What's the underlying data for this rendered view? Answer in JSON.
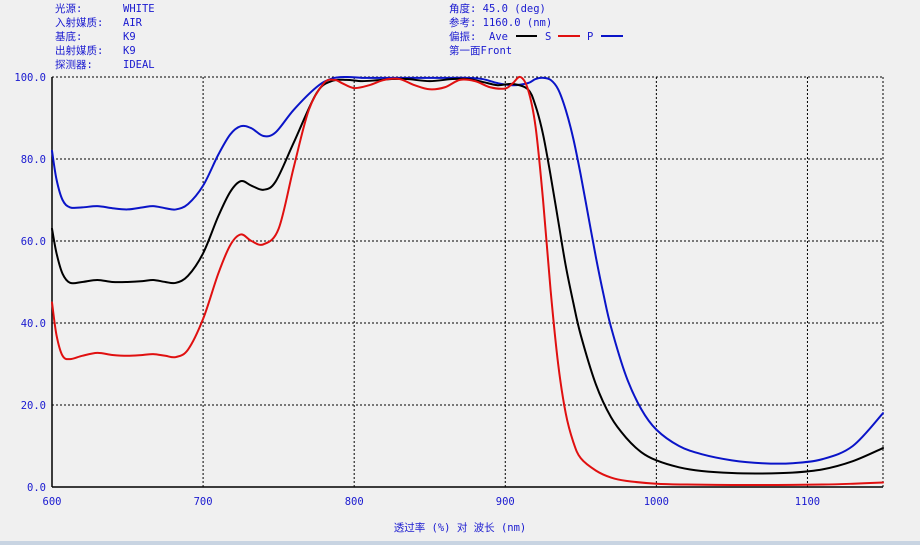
{
  "info": {
    "left": [
      {
        "label": "光源:",
        "value": "WHITE"
      },
      {
        "label": "入射媒质:",
        "value": "AIR"
      },
      {
        "label": "基底:",
        "value": "K9"
      },
      {
        "label": "出射媒质:",
        "value": "K9"
      },
      {
        "label": "探测器:",
        "value": "IDEAL"
      }
    ],
    "right": {
      "angle": "角度: 45.0 (deg)",
      "reference": "参考: 1160.0 (nm)",
      "polarization_label": "偏振:",
      "legend_ave": "Ave",
      "legend_s": "S",
      "legend_p": "P",
      "surface": "第一面Front"
    }
  },
  "colors": {
    "background": "#f0f0f0",
    "text": "#1a1ad0",
    "ave": "#000000",
    "s": "#e01010",
    "p": "#0a14c8",
    "grid": "#000000"
  },
  "chart_data": {
    "type": "line",
    "xlabel": "透过率 (%) 对 波长 (nm)",
    "ylabel": "",
    "xlim": [
      600,
      1150
    ],
    "ylim": [
      0,
      100
    ],
    "x_ticks": [
      "600",
      "700",
      "800",
      "900",
      "1000",
      "1100"
    ],
    "y_ticks": [
      "0.0",
      "20.0",
      "40.0",
      "60.0",
      "80.0",
      "100.0"
    ],
    "grid": true,
    "legend_position": "top",
    "series": [
      {
        "name": "Ave",
        "color": "#000000",
        "x": [
          600,
          603,
          607,
          612,
          620,
          630,
          640,
          650,
          660,
          667,
          675,
          682,
          690,
          700,
          710,
          718,
          725,
          732,
          740,
          748,
          760,
          775,
          785,
          795,
          805,
          815,
          825,
          835,
          850,
          865,
          875,
          885,
          895,
          905,
          915,
          920,
          925,
          930,
          935,
          940,
          945,
          950,
          960,
          970,
          980,
          990,
          1000,
          1015,
          1030,
          1050,
          1070,
          1090,
          1110,
          1130,
          1150
        ],
        "y": [
          63,
          57,
          52,
          49.8,
          50,
          50.5,
          50,
          50,
          50.2,
          50.5,
          50,
          49.8,
          51.5,
          57,
          66,
          72,
          74.6,
          73.5,
          72.5,
          74.5,
          84,
          96,
          99,
          99.3,
          99,
          99.2,
          99.5,
          99.5,
          99,
          99.5,
          99.5,
          98.8,
          98,
          98.3,
          97,
          93,
          86,
          76,
          65,
          54,
          45,
          37,
          25,
          17,
          12,
          8.5,
          6.5,
          4.8,
          3.9,
          3.4,
          3.3,
          3.5,
          4.3,
          6.3,
          9.5
        ]
      },
      {
        "name": "S",
        "color": "#e01010",
        "x": [
          600,
          603,
          607,
          612,
          620,
          630,
          640,
          650,
          660,
          667,
          675,
          682,
          690,
          700,
          710,
          718,
          725,
          732,
          740,
          750,
          760,
          770,
          780,
          787,
          792,
          800,
          810,
          820,
          830,
          840,
          850,
          860,
          870,
          880,
          890,
          900,
          905,
          910,
          915,
          920,
          925,
          930,
          935,
          940,
          945,
          950,
          960,
          970,
          980,
          1000,
          1020,
          1050,
          1080,
          1110,
          1130,
          1150
        ],
        "y": [
          45,
          37,
          32,
          31.2,
          32,
          32.7,
          32.2,
          32,
          32.2,
          32.4,
          32,
          31.7,
          33.5,
          41,
          52,
          59,
          61.6,
          60,
          59.2,
          63,
          78,
          92,
          98.5,
          99.3,
          98.5,
          97.3,
          98,
          99.3,
          99.5,
          98,
          97,
          97.5,
          99.3,
          99,
          97.5,
          97.2,
          98.5,
          100,
          97,
          88,
          70,
          48,
          30,
          18,
          11,
          7,
          4,
          2.3,
          1.5,
          0.8,
          0.6,
          0.5,
          0.5,
          0.6,
          0.8,
          1.1
        ]
      },
      {
        "name": "P",
        "color": "#0a14c8",
        "x": [
          600,
          603,
          607,
          612,
          620,
          630,
          640,
          650,
          660,
          667,
          675,
          682,
          690,
          700,
          710,
          718,
          725,
          732,
          740,
          748,
          760,
          775,
          785,
          795,
          805,
          815,
          825,
          835,
          850,
          865,
          875,
          885,
          895,
          905,
          915,
          920,
          925,
          930,
          935,
          940,
          945,
          950,
          955,
          960,
          965,
          970,
          980,
          990,
          1000,
          1015,
          1030,
          1050,
          1070,
          1090,
          1110,
          1130,
          1150
        ],
        "y": [
          82,
          75,
          70,
          68.2,
          68.2,
          68.5,
          68,
          67.7,
          68.2,
          68.5,
          68,
          67.7,
          69,
          73.5,
          81,
          86,
          88,
          87.5,
          85.6,
          86.5,
          92,
          97.5,
          99.6,
          100,
          99.8,
          99.8,
          99.8,
          99.8,
          99.8,
          99.8,
          99.8,
          99.5,
          98.5,
          98,
          98.5,
          99.5,
          99.8,
          99.3,
          97,
          92,
          85,
          76,
          66,
          56,
          47,
          39,
          27,
          19,
          14,
          10,
          8,
          6.5,
          5.8,
          5.8,
          6.8,
          10,
          18
        ]
      }
    ]
  }
}
